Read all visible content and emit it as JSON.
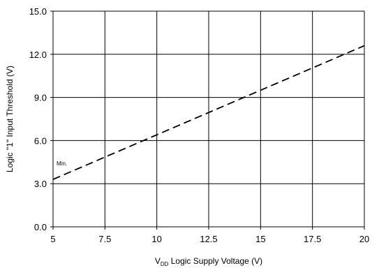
{
  "chart_data": {
    "type": "line",
    "title": "",
    "xlabel": {
      "prefix": "V",
      "subscript": "DD",
      "suffix": " Logic Supply Voltage (V)"
    },
    "ylabel": "Logic \"1\" Input Threshold (V)",
    "xlim": [
      5,
      20
    ],
    "ylim": [
      0,
      15
    ],
    "x_ticks": [
      "5",
      "7.5",
      "10",
      "12.5",
      "15",
      "17.5",
      "20"
    ],
    "y_ticks": [
      "0.0",
      "3.0",
      "6.0",
      "9.0",
      "12.0",
      "15.0"
    ],
    "grid": true,
    "series": [
      {
        "name": "Min.",
        "style": "dashed",
        "color": "#000000",
        "x": [
          5,
          20
        ],
        "y": [
          3.3,
          12.6
        ]
      }
    ]
  }
}
